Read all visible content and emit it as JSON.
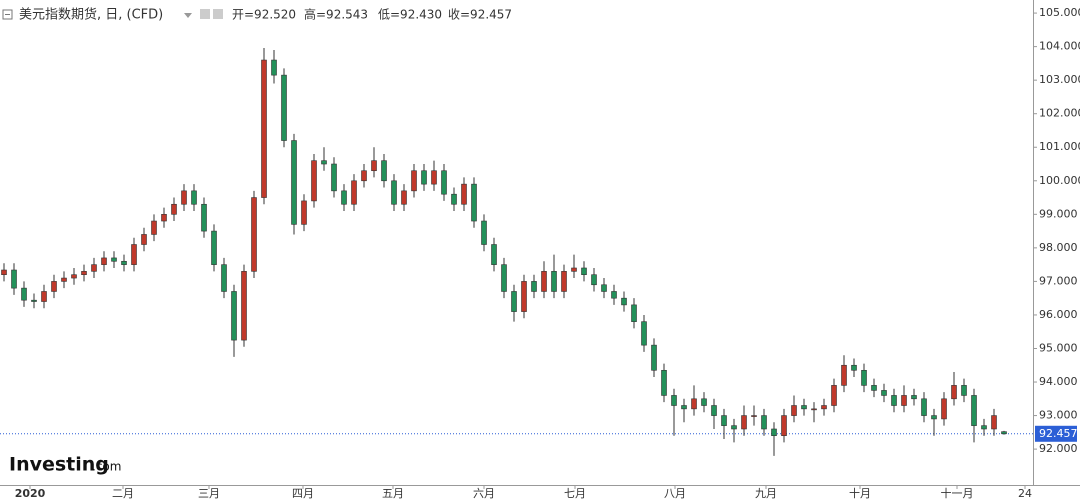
{
  "chart_data": {
    "type": "candlestick",
    "title": "美元指数期货, 日, (CFD)",
    "ohlc_summary": [
      "开=92.520",
      "高=92.543",
      "低=92.430",
      "收=92.457"
    ],
    "logo": [
      "Investing",
      ".com"
    ],
    "up_color": "#c0392b",
    "down_color": "#23915a",
    "last_price": {
      "value": 92.457,
      "label": "92.457"
    },
    "last_price_color": "#2c5fd6",
    "xlim": [
      -0.4,
      102.9
    ],
    "xticks": [
      {
        "value": 2.6,
        "label": "2020"
      },
      {
        "value": 11.9,
        "label": "二月"
      },
      {
        "value": 20.5,
        "label": "三月"
      },
      {
        "value": 29.9,
        "label": "四月"
      },
      {
        "value": 38.9,
        "label": "五月"
      },
      {
        "value": 48,
        "label": "六月"
      },
      {
        "value": 57.1,
        "label": "七月"
      },
      {
        "value": 67.1,
        "label": "八月"
      },
      {
        "value": 76.2,
        "label": "九月"
      },
      {
        "value": 85.6,
        "label": "十月"
      },
      {
        "value": 95.3,
        "label": "十一月"
      },
      {
        "value": 102.1,
        "label": "24"
      }
    ],
    "ylim": [
      90.93,
      105.39
    ],
    "yticks": [
      {
        "value": 92,
        "label": "92.000"
      },
      {
        "value": 93,
        "label": "93.000"
      },
      {
        "value": 94,
        "label": "94.000"
      },
      {
        "value": 95,
        "label": "95.000"
      },
      {
        "value": 96,
        "label": "96.000"
      },
      {
        "value": 97,
        "label": "97.000"
      },
      {
        "value": 98,
        "label": "98.000"
      },
      {
        "value": 99,
        "label": "99.000"
      },
      {
        "value": 100,
        "label": "100.000"
      },
      {
        "value": 101,
        "label": "101.000"
      },
      {
        "value": 102,
        "label": "102.000"
      },
      {
        "value": 103,
        "label": "103.000"
      },
      {
        "value": 104,
        "label": "104.000"
      },
      {
        "value": 105,
        "label": "105.000"
      }
    ],
    "series": [
      {
        "name": "美元指数期货",
        "values": [
          [
            97.2,
            97.54,
            97.0,
            97.34
          ],
          [
            97.34,
            97.54,
            96.6,
            96.8
          ],
          [
            96.8,
            97.0,
            96.24,
            96.44
          ],
          [
            96.44,
            96.64,
            96.2,
            96.4
          ],
          [
            96.4,
            96.9,
            96.2,
            96.7
          ],
          [
            96.7,
            97.2,
            96.5,
            97.0
          ],
          [
            97.0,
            97.3,
            96.8,
            97.1
          ],
          [
            97.1,
            97.4,
            96.9,
            97.2
          ],
          [
            97.2,
            97.5,
            97.0,
            97.3
          ],
          [
            97.3,
            97.7,
            97.1,
            97.5
          ],
          [
            97.5,
            97.9,
            97.3,
            97.7
          ],
          [
            97.7,
            97.9,
            97.4,
            97.6
          ],
          [
            97.6,
            97.8,
            97.3,
            97.5
          ],
          [
            97.5,
            98.3,
            97.3,
            98.1
          ],
          [
            98.1,
            98.6,
            97.9,
            98.4
          ],
          [
            98.4,
            99.0,
            98.2,
            98.8
          ],
          [
            98.8,
            99.2,
            98.6,
            99.0
          ],
          [
            99.0,
            99.5,
            98.8,
            99.3
          ],
          [
            99.3,
            99.9,
            99.1,
            99.7
          ],
          [
            99.7,
            99.9,
            99.1,
            99.3
          ],
          [
            99.3,
            99.5,
            98.3,
            98.5
          ],
          [
            98.5,
            98.7,
            97.3,
            97.5
          ],
          [
            97.5,
            97.7,
            96.5,
            96.7
          ],
          [
            96.7,
            96.9,
            94.75,
            95.25
          ],
          [
            95.25,
            97.5,
            95.05,
            97.3
          ],
          [
            97.3,
            99.7,
            97.1,
            99.5
          ],
          [
            99.5,
            103.96,
            99.3,
            103.6
          ],
          [
            103.6,
            103.9,
            102.9,
            103.15
          ],
          [
            103.15,
            103.35,
            101.0,
            101.2
          ],
          [
            101.2,
            101.4,
            98.4,
            98.7
          ],
          [
            98.7,
            99.6,
            98.5,
            99.4
          ],
          [
            99.4,
            100.8,
            99.2,
            100.6
          ],
          [
            100.6,
            101.0,
            100.3,
            100.5
          ],
          [
            100.5,
            100.7,
            99.5,
            99.7
          ],
          [
            99.7,
            99.9,
            99.1,
            99.3
          ],
          [
            99.3,
            100.2,
            99.1,
            100.0
          ],
          [
            100.0,
            100.5,
            99.8,
            100.3
          ],
          [
            100.3,
            101.0,
            100.1,
            100.6
          ],
          [
            100.6,
            100.8,
            99.8,
            100.0
          ],
          [
            100.0,
            100.2,
            99.1,
            99.3
          ],
          [
            99.3,
            99.9,
            99.1,
            99.7
          ],
          [
            99.7,
            100.5,
            99.5,
            100.3
          ],
          [
            100.3,
            100.5,
            99.7,
            99.9
          ],
          [
            99.9,
            100.6,
            99.7,
            100.3
          ],
          [
            100.3,
            100.5,
            99.4,
            99.6
          ],
          [
            99.6,
            99.8,
            99.1,
            99.3
          ],
          [
            99.3,
            100.1,
            99.1,
            99.9
          ],
          [
            99.9,
            100.1,
            98.6,
            98.8
          ],
          [
            98.8,
            99.0,
            97.9,
            98.1
          ],
          [
            98.1,
            98.3,
            97.3,
            97.5
          ],
          [
            97.5,
            97.7,
            96.5,
            96.7
          ],
          [
            96.7,
            96.9,
            95.8,
            96.1
          ],
          [
            96.1,
            97.2,
            95.9,
            97.0
          ],
          [
            97.0,
            97.2,
            96.5,
            96.7
          ],
          [
            96.7,
            97.6,
            96.5,
            97.3
          ],
          [
            97.3,
            97.8,
            96.5,
            96.7
          ],
          [
            96.7,
            97.5,
            96.5,
            97.3
          ],
          [
            97.3,
            97.8,
            97.1,
            97.4
          ],
          [
            97.4,
            97.6,
            97.0,
            97.2
          ],
          [
            97.2,
            97.4,
            96.7,
            96.9
          ],
          [
            96.9,
            97.1,
            96.5,
            96.7
          ],
          [
            96.7,
            96.9,
            96.3,
            96.5
          ],
          [
            96.5,
            96.7,
            96.1,
            96.3
          ],
          [
            96.3,
            96.5,
            95.6,
            95.8
          ],
          [
            95.8,
            96.0,
            94.9,
            95.1
          ],
          [
            95.1,
            95.3,
            94.15,
            94.35
          ],
          [
            94.35,
            94.55,
            93.4,
            93.6
          ],
          [
            93.6,
            93.8,
            92.4,
            93.3
          ],
          [
            93.3,
            93.5,
            92.8,
            93.2
          ],
          [
            93.2,
            93.9,
            93.0,
            93.5
          ],
          [
            93.5,
            93.7,
            93.1,
            93.3
          ],
          [
            93.3,
            93.5,
            92.6,
            93.0
          ],
          [
            93.0,
            93.2,
            92.3,
            92.7
          ],
          [
            92.7,
            92.9,
            92.2,
            92.6
          ],
          [
            92.6,
            93.3,
            92.4,
            93.0
          ],
          [
            93.0,
            93.3,
            92.7,
            93.0
          ],
          [
            93.0,
            93.2,
            92.4,
            92.6
          ],
          [
            92.6,
            92.8,
            91.8,
            92.4
          ],
          [
            92.4,
            93.2,
            92.2,
            93.0
          ],
          [
            93.0,
            93.6,
            92.8,
            93.3
          ],
          [
            93.3,
            93.5,
            93.0,
            93.2
          ],
          [
            93.2,
            93.4,
            92.8,
            93.2
          ],
          [
            93.2,
            93.5,
            93.0,
            93.3
          ],
          [
            93.3,
            94.1,
            93.1,
            93.9
          ],
          [
            93.9,
            94.8,
            93.7,
            94.5
          ],
          [
            94.5,
            94.7,
            94.15,
            94.35
          ],
          [
            94.35,
            94.55,
            93.7,
            93.9
          ],
          [
            93.9,
            94.1,
            93.55,
            93.75
          ],
          [
            93.75,
            93.95,
            93.4,
            93.6
          ],
          [
            93.6,
            93.8,
            93.1,
            93.3
          ],
          [
            93.3,
            93.9,
            93.1,
            93.6
          ],
          [
            93.6,
            93.8,
            93.3,
            93.5
          ],
          [
            93.5,
            93.7,
            92.8,
            93.0
          ],
          [
            93.0,
            93.2,
            92.4,
            92.9
          ],
          [
            92.9,
            93.7,
            92.7,
            93.5
          ],
          [
            93.5,
            94.3,
            93.3,
            93.9
          ],
          [
            93.9,
            94.1,
            93.4,
            93.6
          ],
          [
            93.6,
            93.8,
            92.2,
            92.7
          ],
          [
            92.7,
            92.9,
            92.4,
            92.6
          ],
          [
            92.6,
            93.2,
            92.4,
            93.0
          ],
          [
            92.52,
            92.543,
            92.43,
            92.457
          ]
        ]
      }
    ]
  }
}
